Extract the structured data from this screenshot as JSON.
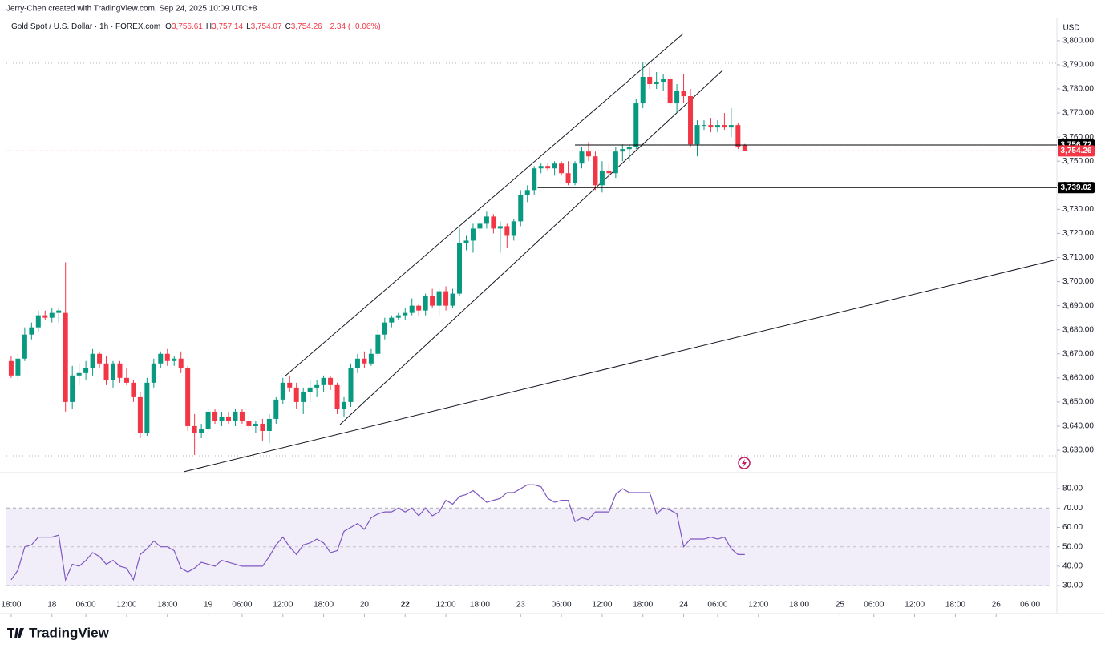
{
  "chart_data": [
    {
      "type": "candlestick",
      "header": "Jerry-Chen created with TradingView.com, Sep 24, 2025 10:09 UTC+8",
      "title": "Gold Spot / U.S. Dollar · 1h · FOREX.com",
      "legend_values": [
        {
          "key": "O",
          "value": "3,756.61"
        },
        {
          "key": "H",
          "value": "3,757.14"
        },
        {
          "key": "L",
          "value": "3,754.07"
        },
        {
          "key": "C",
          "value": "3,754.26"
        }
      ],
      "change": "−2.34 (−0.06%)",
      "currency": "USD",
      "up_color": "#089981",
      "down_color": "#f23645",
      "xlim": [
        -0.7,
        153
      ],
      "xticks": [
        {
          "value": 0,
          "label": "18:00"
        },
        {
          "value": 6,
          "label": "18"
        },
        {
          "value": 11,
          "label": "06:00"
        },
        {
          "value": 17,
          "label": "12:00"
        },
        {
          "value": 23,
          "label": "18:00"
        },
        {
          "value": 29,
          "label": "19"
        },
        {
          "value": 34,
          "label": "06:00"
        },
        {
          "value": 40,
          "label": "12:00"
        },
        {
          "value": 46,
          "label": "18:00"
        },
        {
          "value": 52,
          "label": "20"
        },
        {
          "value": 58,
          "label": "22"
        },
        {
          "value": 64,
          "label": "12:00"
        },
        {
          "value": 69,
          "label": "18:00"
        },
        {
          "value": 75,
          "label": "23"
        },
        {
          "value": 81,
          "label": "06:00"
        },
        {
          "value": 87,
          "label": "12:00"
        },
        {
          "value": 93,
          "label": "18:00"
        },
        {
          "value": 99,
          "label": "24"
        },
        {
          "value": 104,
          "label": "06:00"
        },
        {
          "value": 110,
          "label": "12:00"
        },
        {
          "value": 116,
          "label": "18:00"
        },
        {
          "value": 122,
          "label": "25"
        },
        {
          "value": 127,
          "label": "06:00"
        },
        {
          "value": 133,
          "label": "12:00"
        },
        {
          "value": 139,
          "label": "18:00"
        },
        {
          "value": 145,
          "label": "26"
        },
        {
          "value": 150,
          "label": "06:00"
        }
      ],
      "ylim": [
        3620.7,
        3809.6
      ],
      "yticks": [
        {
          "value": 3630,
          "label": "3,630.00"
        },
        {
          "value": 3640,
          "label": "3,640.00"
        },
        {
          "value": 3650,
          "label": "3,650.00"
        },
        {
          "value": 3660,
          "label": "3,660.00"
        },
        {
          "value": 3670,
          "label": "3,670.00"
        },
        {
          "value": 3680,
          "label": "3,680.00"
        },
        {
          "value": 3690,
          "label": "3,690.00"
        },
        {
          "value": 3700,
          "label": "3,700.00"
        },
        {
          "value": 3710,
          "label": "3,710.00"
        },
        {
          "value": 3720,
          "label": "3,720.00"
        },
        {
          "value": 3730,
          "label": "3,730.00"
        },
        {
          "value": 3740,
          "label": "3,740.00"
        },
        {
          "value": 3750,
          "label": "3,750.00"
        },
        {
          "value": 3760,
          "label": "3,760.00"
        },
        {
          "value": 3770,
          "label": "3,770.00"
        },
        {
          "value": 3780,
          "label": "3,780.00"
        },
        {
          "value": 3790,
          "label": "3,790.00"
        },
        {
          "value": 3800,
          "label": "3,800.00"
        }
      ],
      "price_lines": [
        {
          "value": 3756.72,
          "label": "3,756.72",
          "start": 83,
          "color": "#000000"
        },
        {
          "value": 3739.02,
          "label": "3,739.02",
          "start": 77.5,
          "color": "#000000"
        }
      ],
      "last_price": {
        "value": 3754.26,
        "label": "3,754.26",
        "color": "#f23645"
      },
      "ohlc": [
        [
          3667,
          3669,
          3660,
          3661
        ],
        [
          3661,
          3670,
          3659,
          3668
        ],
        [
          3668,
          3681,
          3667,
          3678
        ],
        [
          3678,
          3683,
          3676,
          3681
        ],
        [
          3681,
          3688,
          3679,
          3686
        ],
        [
          3686,
          3688,
          3684,
          3685
        ],
        [
          3685,
          3689,
          3683,
          3687
        ],
        [
          3687,
          3689,
          3683,
          3688
        ],
        [
          3687,
          3708,
          3646,
          3650
        ],
        [
          3650,
          3665,
          3647,
          3661
        ],
        [
          3661,
          3666,
          3657,
          3662
        ],
        [
          3662,
          3667,
          3659,
          3664
        ],
        [
          3664,
          3672,
          3661,
          3670
        ],
        [
          3670,
          3671,
          3664,
          3666
        ],
        [
          3666,
          3669,
          3657,
          3659
        ],
        [
          3659,
          3667,
          3656,
          3666
        ],
        [
          3666,
          3667,
          3658,
          3660
        ],
        [
          3660,
          3664,
          3657,
          3658
        ],
        [
          3658,
          3659,
          3650,
          3652
        ],
        [
          3652,
          3654,
          3635,
          3637
        ],
        [
          3637,
          3660,
          3636,
          3658
        ],
        [
          3658,
          3668,
          3656,
          3666
        ],
        [
          3666,
          3671,
          3664,
          3670
        ],
        [
          3670,
          3672,
          3665,
          3667
        ],
        [
          3667,
          3669,
          3665,
          3668
        ],
        [
          3668,
          3671,
          3662,
          3664
        ],
        [
          3664,
          3665,
          3638,
          3640
        ],
        [
          3640,
          3645,
          3628,
          3637
        ],
        [
          3637,
          3641,
          3635,
          3639
        ],
        [
          3639,
          3647,
          3638,
          3646
        ],
        [
          3646,
          3647,
          3641,
          3642
        ],
        [
          3642,
          3646,
          3640,
          3644
        ],
        [
          3644,
          3646,
          3641,
          3642
        ],
        [
          3642,
          3647,
          3640,
          3646
        ],
        [
          3646,
          3647,
          3641,
          3642
        ],
        [
          3642,
          3644,
          3638,
          3640
        ],
        [
          3640,
          3642,
          3637,
          3641
        ],
        [
          3641,
          3643,
          3634,
          3638
        ],
        [
          3638,
          3645,
          3633,
          3643
        ],
        [
          3643,
          3652,
          3641,
          3651
        ],
        [
          3651,
          3660,
          3649,
          3658
        ],
        [
          3658,
          3661,
          3654,
          3656
        ],
        [
          3656,
          3658,
          3647,
          3650
        ],
        [
          3650,
          3656,
          3645,
          3654
        ],
        [
          3654,
          3659,
          3650,
          3656
        ],
        [
          3656,
          3659,
          3652,
          3657
        ],
        [
          3657,
          3661,
          3654,
          3660
        ],
        [
          3660,
          3661,
          3655,
          3657
        ],
        [
          3657,
          3658,
          3645,
          3647
        ],
        [
          3647,
          3652,
          3644,
          3650
        ],
        [
          3650,
          3666,
          3648,
          3664
        ],
        [
          3664,
          3670,
          3662,
          3668
        ],
        [
          3668,
          3671,
          3664,
          3666
        ],
        [
          3666,
          3672,
          3665,
          3670
        ],
        [
          3670,
          3680,
          3669,
          3678
        ],
        [
          3678,
          3685,
          3676,
          3683
        ],
        [
          3683,
          3686,
          3681,
          3685
        ],
        [
          3685,
          3687,
          3684,
          3686
        ],
        [
          3686,
          3689,
          3684,
          3687
        ],
        [
          3687,
          3693,
          3686,
          3690
        ],
        [
          3690,
          3691,
          3686,
          3688
        ],
        [
          3688,
          3695,
          3686,
          3694
        ],
        [
          3694,
          3697,
          3689,
          3690
        ],
        [
          3690,
          3697,
          3686,
          3696
        ],
        [
          3696,
          3698,
          3688,
          3690
        ],
        [
          3690,
          3697,
          3689,
          3695
        ],
        [
          3695,
          3722,
          3694,
          3716
        ],
        [
          3716,
          3719,
          3713,
          3717
        ],
        [
          3717,
          3724,
          3712,
          3722
        ],
        [
          3722,
          3726,
          3720,
          3724
        ],
        [
          3724,
          3729,
          3722,
          3727
        ],
        [
          3727,
          3728,
          3720,
          3722
        ],
        [
          3722,
          3725,
          3712,
          3723
        ],
        [
          3723,
          3724,
          3714,
          3719
        ],
        [
          3719,
          3726,
          3717,
          3725
        ],
        [
          3725,
          3738,
          3723,
          3736
        ],
        [
          3736,
          3740,
          3733,
          3738
        ],
        [
          3738,
          3748,
          3736,
          3747
        ],
        [
          3747,
          3749,
          3745,
          3748
        ],
        [
          3748,
          3749,
          3746,
          3747
        ],
        [
          3747,
          3750,
          3744,
          3749
        ],
        [
          3749,
          3750,
          3744,
          3745
        ],
        [
          3745,
          3750,
          3740,
          3741
        ],
        [
          3741,
          3750,
          3740,
          3749
        ],
        [
          3749,
          3756,
          3747,
          3754
        ],
        [
          3754,
          3758,
          3750,
          3752
        ],
        [
          3752,
          3754,
          3738,
          3740
        ],
        [
          3740,
          3750,
          3737,
          3746
        ],
        [
          3746,
          3749,
          3742,
          3745
        ],
        [
          3745,
          3756,
          3743,
          3754
        ],
        [
          3754,
          3757,
          3750,
          3755
        ],
        [
          3755,
          3757,
          3750,
          3756
        ],
        [
          3756,
          3776,
          3755,
          3774
        ],
        [
          3774,
          3791,
          3772,
          3785
        ],
        [
          3785,
          3789,
          3780,
          3782
        ],
        [
          3782,
          3787,
          3780,
          3783
        ],
        [
          3783,
          3786,
          3779,
          3784
        ],
        [
          3784,
          3785,
          3773,
          3774
        ],
        [
          3774,
          3782,
          3770,
          3779
        ],
        [
          3779,
          3786,
          3774,
          3777
        ],
        [
          3777,
          3780,
          3756,
          3757
        ],
        [
          3757,
          3767,
          3752,
          3765
        ],
        [
          3765,
          3767,
          3763,
          3765
        ],
        [
          3765,
          3768,
          3762,
          3764
        ],
        [
          3764,
          3767,
          3762,
          3765
        ],
        [
          3765,
          3770,
          3763,
          3764
        ],
        [
          3764,
          3772,
          3760,
          3765
        ],
        [
          3765,
          3766,
          3755,
          3756
        ],
        [
          3756.61,
          3757.14,
          3754.07,
          3754.26
        ]
      ]
    },
    {
      "type": "line",
      "color": "#7e57c2",
      "band": [
        30,
        70
      ],
      "midline": 50,
      "ylim": [
        25.5,
        88.3
      ],
      "yticks": [
        {
          "value": 30,
          "label": "30.00"
        },
        {
          "value": 40,
          "label": "40.00"
        },
        {
          "value": 50,
          "label": "50.00"
        },
        {
          "value": 60,
          "label": "60.00"
        },
        {
          "value": 70,
          "label": "70.00"
        },
        {
          "value": 80,
          "label": "80.00"
        }
      ],
      "values": [
        33,
        38,
        50,
        51,
        55,
        55,
        55,
        56,
        33,
        41,
        40,
        43,
        47,
        45,
        41,
        43,
        40,
        39,
        33,
        46,
        49,
        53,
        50,
        50,
        48,
        39,
        37,
        39,
        42,
        41,
        40,
        43,
        42,
        41,
        40,
        40,
        40,
        40,
        45,
        51,
        55,
        50,
        46,
        51,
        52,
        54,
        52,
        47,
        48,
        58,
        60,
        62,
        59,
        65,
        67,
        68,
        68,
        70,
        68,
        70,
        66,
        70,
        66,
        68,
        74,
        72,
        76,
        77,
        79,
        76,
        73,
        74,
        75,
        78,
        78,
        80,
        82,
        82,
        81,
        75,
        73,
        74,
        74,
        63,
        65,
        64,
        68,
        68,
        68,
        77,
        80,
        78,
        78,
        78,
        78,
        67,
        70,
        69,
        67,
        50,
        54,
        54,
        54,
        55,
        54,
        55,
        49,
        46,
        46
      ]
    }
  ],
  "footer": "TradingView"
}
